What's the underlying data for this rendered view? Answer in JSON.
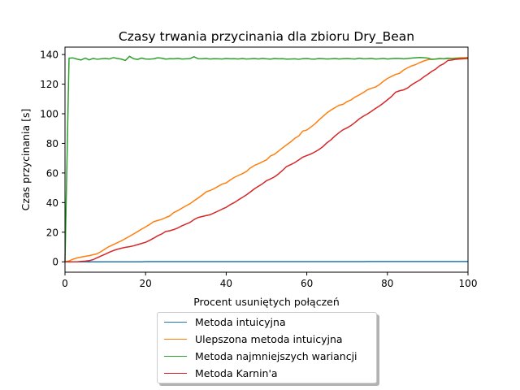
{
  "chart_data": {
    "type": "line",
    "title": "Czasy trwania przycinania dla zbioru Dry_Bean",
    "xlabel": "Procent usuniętych połączeń",
    "ylabel": "Czas przycinania [s]",
    "xlim": [
      0,
      100
    ],
    "ylim": [
      -7,
      145
    ],
    "xticks": [
      0,
      20,
      40,
      60,
      80,
      100
    ],
    "yticks": [
      0,
      20,
      40,
      60,
      80,
      100,
      120,
      140
    ],
    "grid": false,
    "legend_position": "below",
    "x": [
      0,
      1,
      2,
      3,
      4,
      5,
      6,
      7,
      8,
      9,
      10,
      11,
      12,
      13,
      14,
      15,
      16,
      17,
      18,
      19,
      20,
      21,
      22,
      23,
      24,
      25,
      26,
      27,
      28,
      29,
      30,
      31,
      32,
      33,
      34,
      35,
      36,
      37,
      38,
      39,
      40,
      41,
      42,
      43,
      44,
      45,
      46,
      47,
      48,
      49,
      50,
      51,
      52,
      53,
      54,
      55,
      56,
      57,
      58,
      59,
      60,
      61,
      62,
      63,
      64,
      65,
      66,
      67,
      68,
      69,
      70,
      71,
      72,
      73,
      74,
      75,
      76,
      77,
      78,
      79,
      80,
      81,
      82,
      83,
      84,
      85,
      86,
      87,
      88,
      89,
      90,
      91,
      92,
      93,
      94,
      95,
      96,
      97,
      98,
      99,
      100
    ],
    "series": [
      {
        "name": "Metoda intuicyjna",
        "color": "#1f77b4",
        "values": [
          0,
          0,
          0,
          0,
          0,
          0,
          0,
          0,
          0,
          0,
          0,
          0,
          0,
          0,
          0,
          0,
          0,
          0,
          0,
          0,
          0.1,
          0.1,
          0.1,
          0.1,
          0.1,
          0.1,
          0.1,
          0.1,
          0.1,
          0.1,
          0.1,
          0.1,
          0.1,
          0.1,
          0.1,
          0.1,
          0.1,
          0.1,
          0.1,
          0.1,
          0.1,
          0.1,
          0.1,
          0.1,
          0.1,
          0.1,
          0.1,
          0.1,
          0.1,
          0.1,
          0.1,
          0.1,
          0.1,
          0.1,
          0.1,
          0.1,
          0.1,
          0.1,
          0.1,
          0.1,
          0.1,
          0.1,
          0.1,
          0.1,
          0.1,
          0.1,
          0.1,
          0.1,
          0.1,
          0.1,
          0.1,
          0.1,
          0.1,
          0.1,
          0.1,
          0.2,
          0.2,
          0.2,
          0.2,
          0.2,
          0.2,
          0.2,
          0.2,
          0.2,
          0.2,
          0.2,
          0.2,
          0.2,
          0.2,
          0.2,
          0.2,
          0.2,
          0.2,
          0.2,
          0.2,
          0.2,
          0.2,
          0.2,
          0.2,
          0.2,
          0.2
        ]
      },
      {
        "name": "Ulepszona metoda intuicyjna",
        "color": "#ff7f0e",
        "values": [
          0,
          0.6,
          1.8,
          2.6,
          3.2,
          3.7,
          4.2,
          4.8,
          5.5,
          7.0,
          8.8,
          10.4,
          11.6,
          12.9,
          14.2,
          15.7,
          17.2,
          18.8,
          20.4,
          22.1,
          23.6,
          25.2,
          27.1,
          27.9,
          28.7,
          29.9,
          31.0,
          33.3,
          34.6,
          36.2,
          37.8,
          39.2,
          41.2,
          43.0,
          45.0,
          47.2,
          48.2,
          49.4,
          51.0,
          52.5,
          53.3,
          55.3,
          57.0,
          58.3,
          59.5,
          61.0,
          63.4,
          65.1,
          66.2,
          67.6,
          68.8,
          71.5,
          72.7,
          74.8,
          77.0,
          79.0,
          81.0,
          83.4,
          85.0,
          88.3,
          89.0,
          91.0,
          93.1,
          95.8,
          98.2,
          100.6,
          102.5,
          104.1,
          105.7,
          106.4,
          108.2,
          109.4,
          111.3,
          112.7,
          114.3,
          116.1,
          117.2,
          118.0,
          119.6,
          121.9,
          123.8,
          125.2,
          126.5,
          127.3,
          129.5,
          131.0,
          132.3,
          133.2,
          134.5,
          135.6,
          136.5,
          136.8,
          137.0,
          137.1,
          137.2,
          137.3,
          137.4,
          137.6,
          137.8,
          137.9,
          138.0
        ]
      },
      {
        "name": "Metoda najmniejszych wariancji",
        "color": "#2ca02c",
        "values": [
          0,
          137.5,
          137.7,
          136.9,
          136.3,
          137.6,
          136.4,
          137.4,
          136.8,
          137.1,
          137.4,
          137.0,
          137.9,
          137.3,
          136.9,
          136.0,
          138.8,
          137.2,
          136.7,
          137.6,
          137.0,
          136.9,
          137.1,
          137.8,
          137.5,
          136.9,
          137.2,
          137.1,
          137.4,
          137.0,
          137.1,
          137.2,
          138.5,
          137.2,
          137.1,
          137.3,
          137.0,
          137.2,
          137.1,
          137.0,
          137.3,
          137.1,
          137.2,
          137.0,
          137.3,
          137.0,
          137.1,
          137.3,
          137.0,
          137.4,
          137.1,
          136.9,
          137.3,
          137.1,
          137.2,
          136.9,
          137.0,
          137.1,
          136.8,
          137.2,
          137.3,
          137.0,
          136.9,
          137.3,
          137.2,
          137.0,
          137.1,
          137.3,
          137.0,
          137.2,
          137.3,
          137.1,
          137.0,
          137.5,
          137.1,
          137.2,
          137.4,
          137.0,
          137.1,
          137.4,
          137.0,
          137.2,
          137.4,
          137.3,
          137.1,
          137.3,
          137.6,
          137.8,
          138.0,
          137.9,
          137.6,
          136.8,
          137.0,
          137.3,
          137.1,
          137.5,
          137.2,
          137.3,
          137.4,
          137.3,
          137.5
        ]
      },
      {
        "name": "Metoda Karnin'a",
        "color": "#d62728",
        "values": [
          0,
          0,
          0,
          0,
          0.3,
          0.5,
          0.8,
          1.5,
          2.8,
          4.0,
          5.2,
          6.5,
          7.6,
          8.5,
          9.2,
          9.8,
          10.2,
          10.8,
          11.6,
          12.4,
          13.2,
          14.5,
          16.0,
          17.6,
          18.8,
          20.5,
          21.0,
          21.8,
          22.9,
          24.3,
          25.5,
          26.6,
          28.5,
          29.9,
          30.6,
          31.2,
          31.8,
          33.0,
          34.3,
          35.6,
          36.8,
          38.6,
          40.0,
          41.8,
          43.5,
          45.2,
          47.2,
          49.3,
          51.0,
          52.7,
          54.8,
          56.0,
          57.4,
          59.4,
          61.8,
          64.4,
          65.6,
          67.0,
          68.8,
          70.7,
          71.8,
          72.8,
          74.2,
          75.8,
          77.8,
          80.4,
          82.4,
          85.0,
          87.2,
          89.2,
          90.5,
          92.1,
          94.2,
          96.5,
          98.3,
          99.8,
          101.6,
          103.5,
          105.2,
          107.2,
          109.4,
          111.6,
          114.5,
          115.5,
          116.1,
          117.4,
          119.5,
          121.2,
          122.7,
          124.8,
          126.6,
          128.6,
          130.2,
          132.5,
          133.8,
          136.0,
          136.3,
          136.8,
          137.0,
          137.2,
          137.4
        ]
      }
    ]
  }
}
